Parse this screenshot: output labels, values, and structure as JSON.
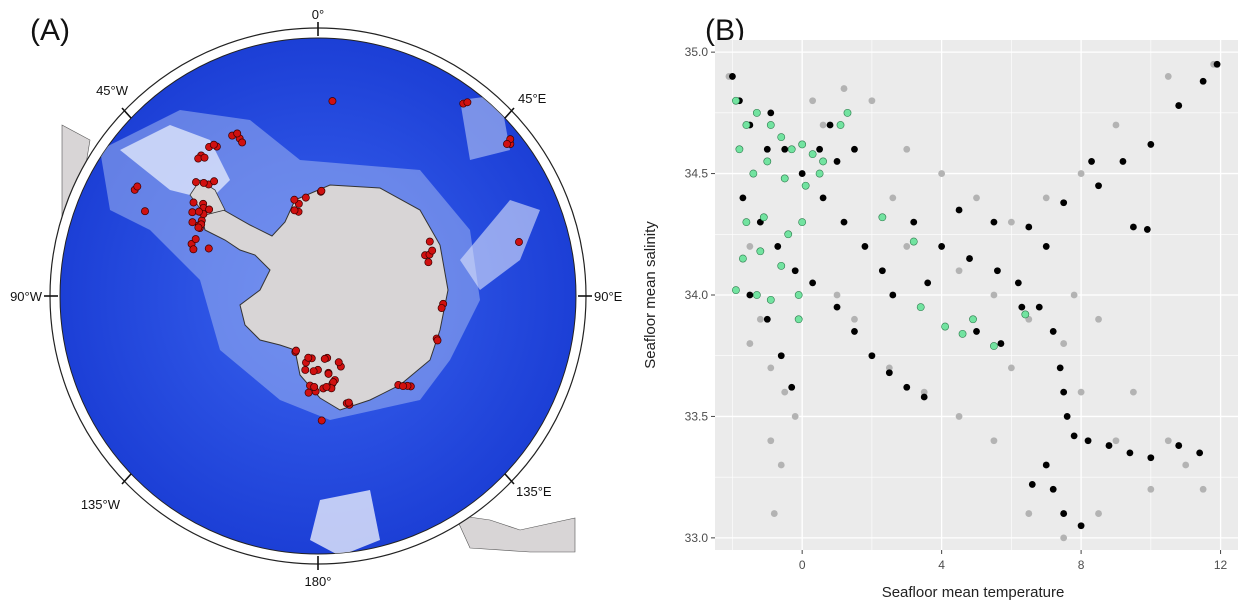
{
  "panels": {
    "a_label": "(A)",
    "b_label": "(B)"
  },
  "map": {
    "compass_labels": [
      "0°",
      "45°E",
      "90°E",
      "135°E",
      "180°",
      "135°W",
      "90°W",
      "45°W"
    ],
    "colors": {
      "ocean_deep": "#1f46e0",
      "ocean_shallow": "#c9d4f5",
      "land": "#d8d5d6",
      "site": "#d01010"
    },
    "site_count_shown": 90
  },
  "chart_data": {
    "type": "scatter",
    "xlabel": "Seafloor mean temperature",
    "ylabel": "Seafloor mean salinity",
    "xlim": [
      -2.5,
      12.5
    ],
    "ylim": [
      32.95,
      35.05
    ],
    "x_ticks": [
      "0",
      "4",
      "8",
      "12"
    ],
    "y_ticks": [
      "33.0",
      "33.5",
      "34.0",
      "34.5",
      "35.0"
    ],
    "grid": true,
    "background": "#ebebeb",
    "series": [
      {
        "color": "#b3b3b3",
        "points": [
          [
            -2.1,
            34.9
          ],
          [
            -1.8,
            34.6
          ],
          [
            -1.5,
            34.2
          ],
          [
            -1.2,
            33.9
          ],
          [
            -0.9,
            33.7
          ],
          [
            -0.5,
            33.6
          ],
          [
            -0.2,
            33.5
          ],
          [
            -0.9,
            33.4
          ],
          [
            -0.6,
            33.3
          ],
          [
            -0.8,
            33.1
          ],
          [
            0.3,
            34.8
          ],
          [
            1.2,
            34.85
          ],
          [
            2.0,
            34.8
          ],
          [
            0.6,
            34.7
          ],
          [
            3.0,
            34.6
          ],
          [
            2.6,
            34.4
          ],
          [
            4.0,
            34.5
          ],
          [
            5.0,
            34.4
          ],
          [
            6.0,
            34.3
          ],
          [
            7.0,
            34.4
          ],
          [
            8.0,
            34.5
          ],
          [
            9.0,
            34.7
          ],
          [
            10.5,
            34.9
          ],
          [
            11.8,
            34.95
          ],
          [
            4.5,
            34.1
          ],
          [
            5.5,
            34.0
          ],
          [
            6.5,
            33.9
          ],
          [
            7.5,
            33.8
          ],
          [
            8.0,
            33.6
          ],
          [
            9.0,
            33.4
          ],
          [
            10.0,
            33.2
          ],
          [
            11.0,
            33.3
          ],
          [
            11.5,
            33.2
          ],
          [
            7.0,
            33.3
          ],
          [
            6.5,
            33.1
          ],
          [
            7.5,
            33.0
          ],
          [
            8.5,
            33.1
          ],
          [
            1.5,
            33.9
          ],
          [
            2.5,
            33.7
          ],
          [
            3.5,
            33.6
          ],
          [
            4.5,
            33.5
          ],
          [
            5.5,
            33.4
          ],
          [
            6.0,
            33.7
          ],
          [
            7.8,
            34.0
          ],
          [
            8.5,
            33.9
          ],
          [
            9.5,
            33.6
          ],
          [
            10.5,
            33.4
          ],
          [
            3.0,
            34.2
          ],
          [
            1.0,
            34.0
          ],
          [
            -1.5,
            33.8
          ]
        ]
      },
      {
        "color": "#000000",
        "points": [
          [
            -2.0,
            34.9
          ],
          [
            -1.8,
            34.8
          ],
          [
            -1.5,
            34.7
          ],
          [
            -1.0,
            34.6
          ],
          [
            -0.5,
            34.6
          ],
          [
            0.0,
            34.5
          ],
          [
            0.5,
            34.6
          ],
          [
            1.0,
            34.55
          ],
          [
            1.5,
            34.6
          ],
          [
            -1.7,
            34.4
          ],
          [
            -1.2,
            34.3
          ],
          [
            -0.7,
            34.2
          ],
          [
            -0.2,
            34.1
          ],
          [
            0.3,
            34.05
          ],
          [
            -1.5,
            34.0
          ],
          [
            -1.0,
            33.9
          ],
          [
            -0.6,
            33.75
          ],
          [
            -0.3,
            33.62
          ],
          [
            0.6,
            34.4
          ],
          [
            1.2,
            34.3
          ],
          [
            1.8,
            34.2
          ],
          [
            2.3,
            34.1
          ],
          [
            1.0,
            33.95
          ],
          [
            1.5,
            33.85
          ],
          [
            2.0,
            33.75
          ],
          [
            2.5,
            33.68
          ],
          [
            3.0,
            33.62
          ],
          [
            3.5,
            33.58
          ],
          [
            3.2,
            34.3
          ],
          [
            4.0,
            34.2
          ],
          [
            4.8,
            34.15
          ],
          [
            5.6,
            34.1
          ],
          [
            6.2,
            34.05
          ],
          [
            6.8,
            33.95
          ],
          [
            7.2,
            33.85
          ],
          [
            7.4,
            33.7
          ],
          [
            7.5,
            33.6
          ],
          [
            7.6,
            33.5
          ],
          [
            7.8,
            33.42
          ],
          [
            8.2,
            33.4
          ],
          [
            8.8,
            33.38
          ],
          [
            9.4,
            33.35
          ],
          [
            10.0,
            33.33
          ],
          [
            10.8,
            33.38
          ],
          [
            11.4,
            33.35
          ],
          [
            7.0,
            33.3
          ],
          [
            7.2,
            33.2
          ],
          [
            7.5,
            33.1
          ],
          [
            8.0,
            33.05
          ],
          [
            6.6,
            33.22
          ],
          [
            4.5,
            34.35
          ],
          [
            5.5,
            34.3
          ],
          [
            6.5,
            34.28
          ],
          [
            7.5,
            34.38
          ],
          [
            8.5,
            34.45
          ],
          [
            9.2,
            34.55
          ],
          [
            10.0,
            34.62
          ],
          [
            10.8,
            34.78
          ],
          [
            11.5,
            34.88
          ],
          [
            11.9,
            34.95
          ],
          [
            9.5,
            34.28
          ],
          [
            9.9,
            34.27
          ],
          [
            5.0,
            33.85
          ],
          [
            5.7,
            33.8
          ],
          [
            6.3,
            33.95
          ],
          [
            3.6,
            34.05
          ],
          [
            2.6,
            34.0
          ],
          [
            8.3,
            34.55
          ],
          [
            7.0,
            34.2
          ],
          [
            -0.9,
            34.75
          ],
          [
            0.8,
            34.7
          ]
        ]
      },
      {
        "color": "#72e3a0",
        "points": [
          [
            -1.9,
            34.8
          ],
          [
            -1.6,
            34.7
          ],
          [
            -1.3,
            34.75
          ],
          [
            -0.9,
            34.7
          ],
          [
            -0.6,
            34.65
          ],
          [
            -0.3,
            34.6
          ],
          [
            0.0,
            34.62
          ],
          [
            0.3,
            34.58
          ],
          [
            0.6,
            34.55
          ],
          [
            -1.8,
            34.6
          ],
          [
            -1.4,
            34.5
          ],
          [
            -1.0,
            34.55
          ],
          [
            -0.5,
            34.48
          ],
          [
            0.1,
            34.45
          ],
          [
            0.5,
            34.5
          ],
          [
            1.1,
            34.7
          ],
          [
            1.3,
            34.75
          ],
          [
            -1.6,
            34.3
          ],
          [
            -1.1,
            34.32
          ],
          [
            -0.4,
            34.25
          ],
          [
            0.0,
            34.3
          ],
          [
            -1.7,
            34.15
          ],
          [
            -1.2,
            34.18
          ],
          [
            -0.6,
            34.12
          ],
          [
            -0.1,
            34.0
          ],
          [
            -1.9,
            34.02
          ],
          [
            -1.3,
            34.0
          ],
          [
            -0.9,
            33.98
          ],
          [
            -0.1,
            33.9
          ],
          [
            3.2,
            34.22
          ],
          [
            2.3,
            34.32
          ],
          [
            3.4,
            33.95
          ],
          [
            4.1,
            33.87
          ],
          [
            4.9,
            33.9
          ],
          [
            4.6,
            33.84
          ],
          [
            5.5,
            33.79
          ],
          [
            6.4,
            33.92
          ]
        ]
      }
    ]
  }
}
